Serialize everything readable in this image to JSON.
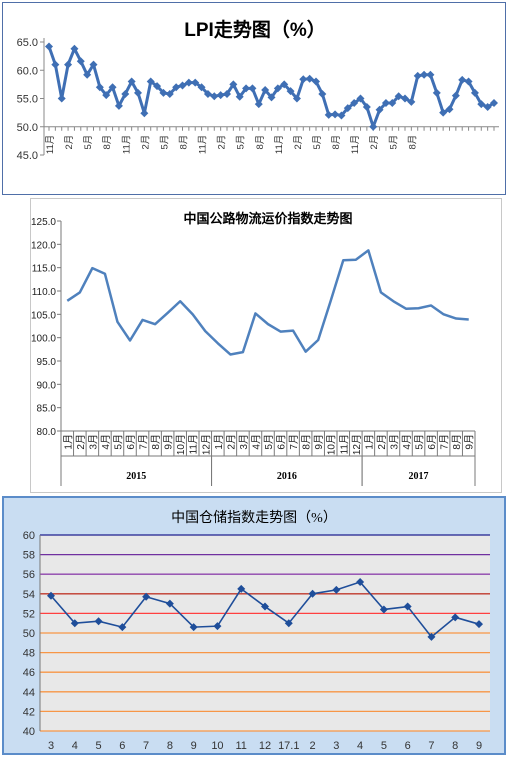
{
  "chart_data": [
    {
      "type": "line",
      "title": "LPI走势图（%）",
      "ylim": [
        45,
        65
      ],
      "yticks": [
        "45.0",
        "50.0",
        "55.0",
        "60.0",
        "65.0"
      ],
      "xticks": [
        "11月",
        "2月",
        "5月",
        "8月",
        "11月",
        "2月",
        "5月",
        "8月",
        "11月",
        "2月",
        "5月",
        "8月",
        "11月",
        "2月",
        "5月",
        "8月",
        "11月",
        "2月",
        "5月",
        "8月"
      ],
      "values": [
        64.2,
        61,
        55,
        61,
        63.8,
        61.6,
        59.2,
        61,
        57,
        55.6,
        57,
        53.7,
        55.8,
        58,
        56,
        52.4,
        58,
        57.2,
        56,
        55.8,
        57,
        57.3,
        57.8,
        57.8,
        57,
        55.8,
        55.4,
        55.6,
        55.8,
        57.5,
        55.3,
        56.8,
        56.8,
        54,
        56.5,
        55.2,
        56.8,
        57.5,
        56.3,
        55,
        58.4,
        58.5,
        58,
        55.8,
        52.1,
        52.2,
        52,
        53.3,
        54.2,
        55,
        53.5,
        50,
        53,
        54.2,
        54.2,
        55.4,
        55,
        54.4,
        59,
        59.2,
        59.2,
        56,
        52.5,
        53.1,
        55.5,
        58.3,
        58,
        56,
        54,
        53.5,
        54.2
      ],
      "line_color": "#3f6fb4"
    },
    {
      "type": "line",
      "title": "中国公路物流运价指数走势图",
      "ylim": [
        80,
        125
      ],
      "yticks": [
        "80.0",
        "85.0",
        "90.0",
        "95.0",
        "100.0",
        "105.0",
        "110.0",
        "115.0",
        "120.0",
        "125.0"
      ],
      "categories": [
        "1月",
        "2月",
        "3月",
        "4月",
        "5月",
        "6月",
        "7月",
        "8月",
        "9月",
        "10月",
        "11月",
        "12月",
        "1月",
        "2月",
        "3月",
        "4月",
        "5月",
        "6月",
        "7月",
        "8月",
        "9月",
        "10月",
        "11月",
        "12月",
        "1月",
        "2月",
        "3月",
        "4月",
        "5月",
        "6月",
        "7月",
        "8月",
        "9月"
      ],
      "groups": [
        {
          "label": "2015",
          "count": 12
        },
        {
          "label": "2016",
          "count": 12
        },
        {
          "label": "2017",
          "count": 9
        }
      ],
      "values": [
        107.9,
        109.7,
        114.9,
        113.7,
        103.4,
        99.4,
        103.8,
        102.9,
        105.3,
        107.8,
        105,
        101.4,
        98.8,
        96.4,
        96.9,
        105.2,
        102.9,
        101.3,
        101.5,
        97,
        99.5,
        107.9,
        116.6,
        116.7,
        118.7,
        109.7,
        107.8,
        106.2,
        106.3,
        106.9,
        105,
        104.1,
        103.9
      ],
      "line_color": "#4f81bd"
    },
    {
      "type": "line",
      "title": "中国仓储指数走势图（%）",
      "ylim": [
        40,
        60
      ],
      "yticks": [
        "40",
        "42",
        "44",
        "46",
        "48",
        "50",
        "52",
        "54",
        "56",
        "58",
        "60"
      ],
      "categories": [
        "3",
        "4",
        "5",
        "6",
        "7",
        "8",
        "9",
        "10",
        "11",
        "12",
        "17.1",
        "2",
        "3",
        "4",
        "5",
        "6",
        "7",
        "8",
        "9"
      ],
      "values": [
        53.8,
        51,
        51.2,
        50.6,
        53.7,
        53,
        50.6,
        50.7,
        54.5,
        52.7,
        51,
        54,
        54.4,
        55.2,
        52.4,
        52.7,
        49.6,
        51.6,
        50.9
      ],
      "line_color": "#1f4e9a",
      "gridline_colors": {
        "40": "#f79646",
        "42": "#f79646",
        "44": "#f79646",
        "46": "#f79646",
        "48": "#f79646",
        "50": "#f79646",
        "52": "#ff4040",
        "54": "#c0392b",
        "56": "#8e44ad",
        "58": "#7030a0",
        "60": "#1f1f8f"
      }
    }
  ]
}
